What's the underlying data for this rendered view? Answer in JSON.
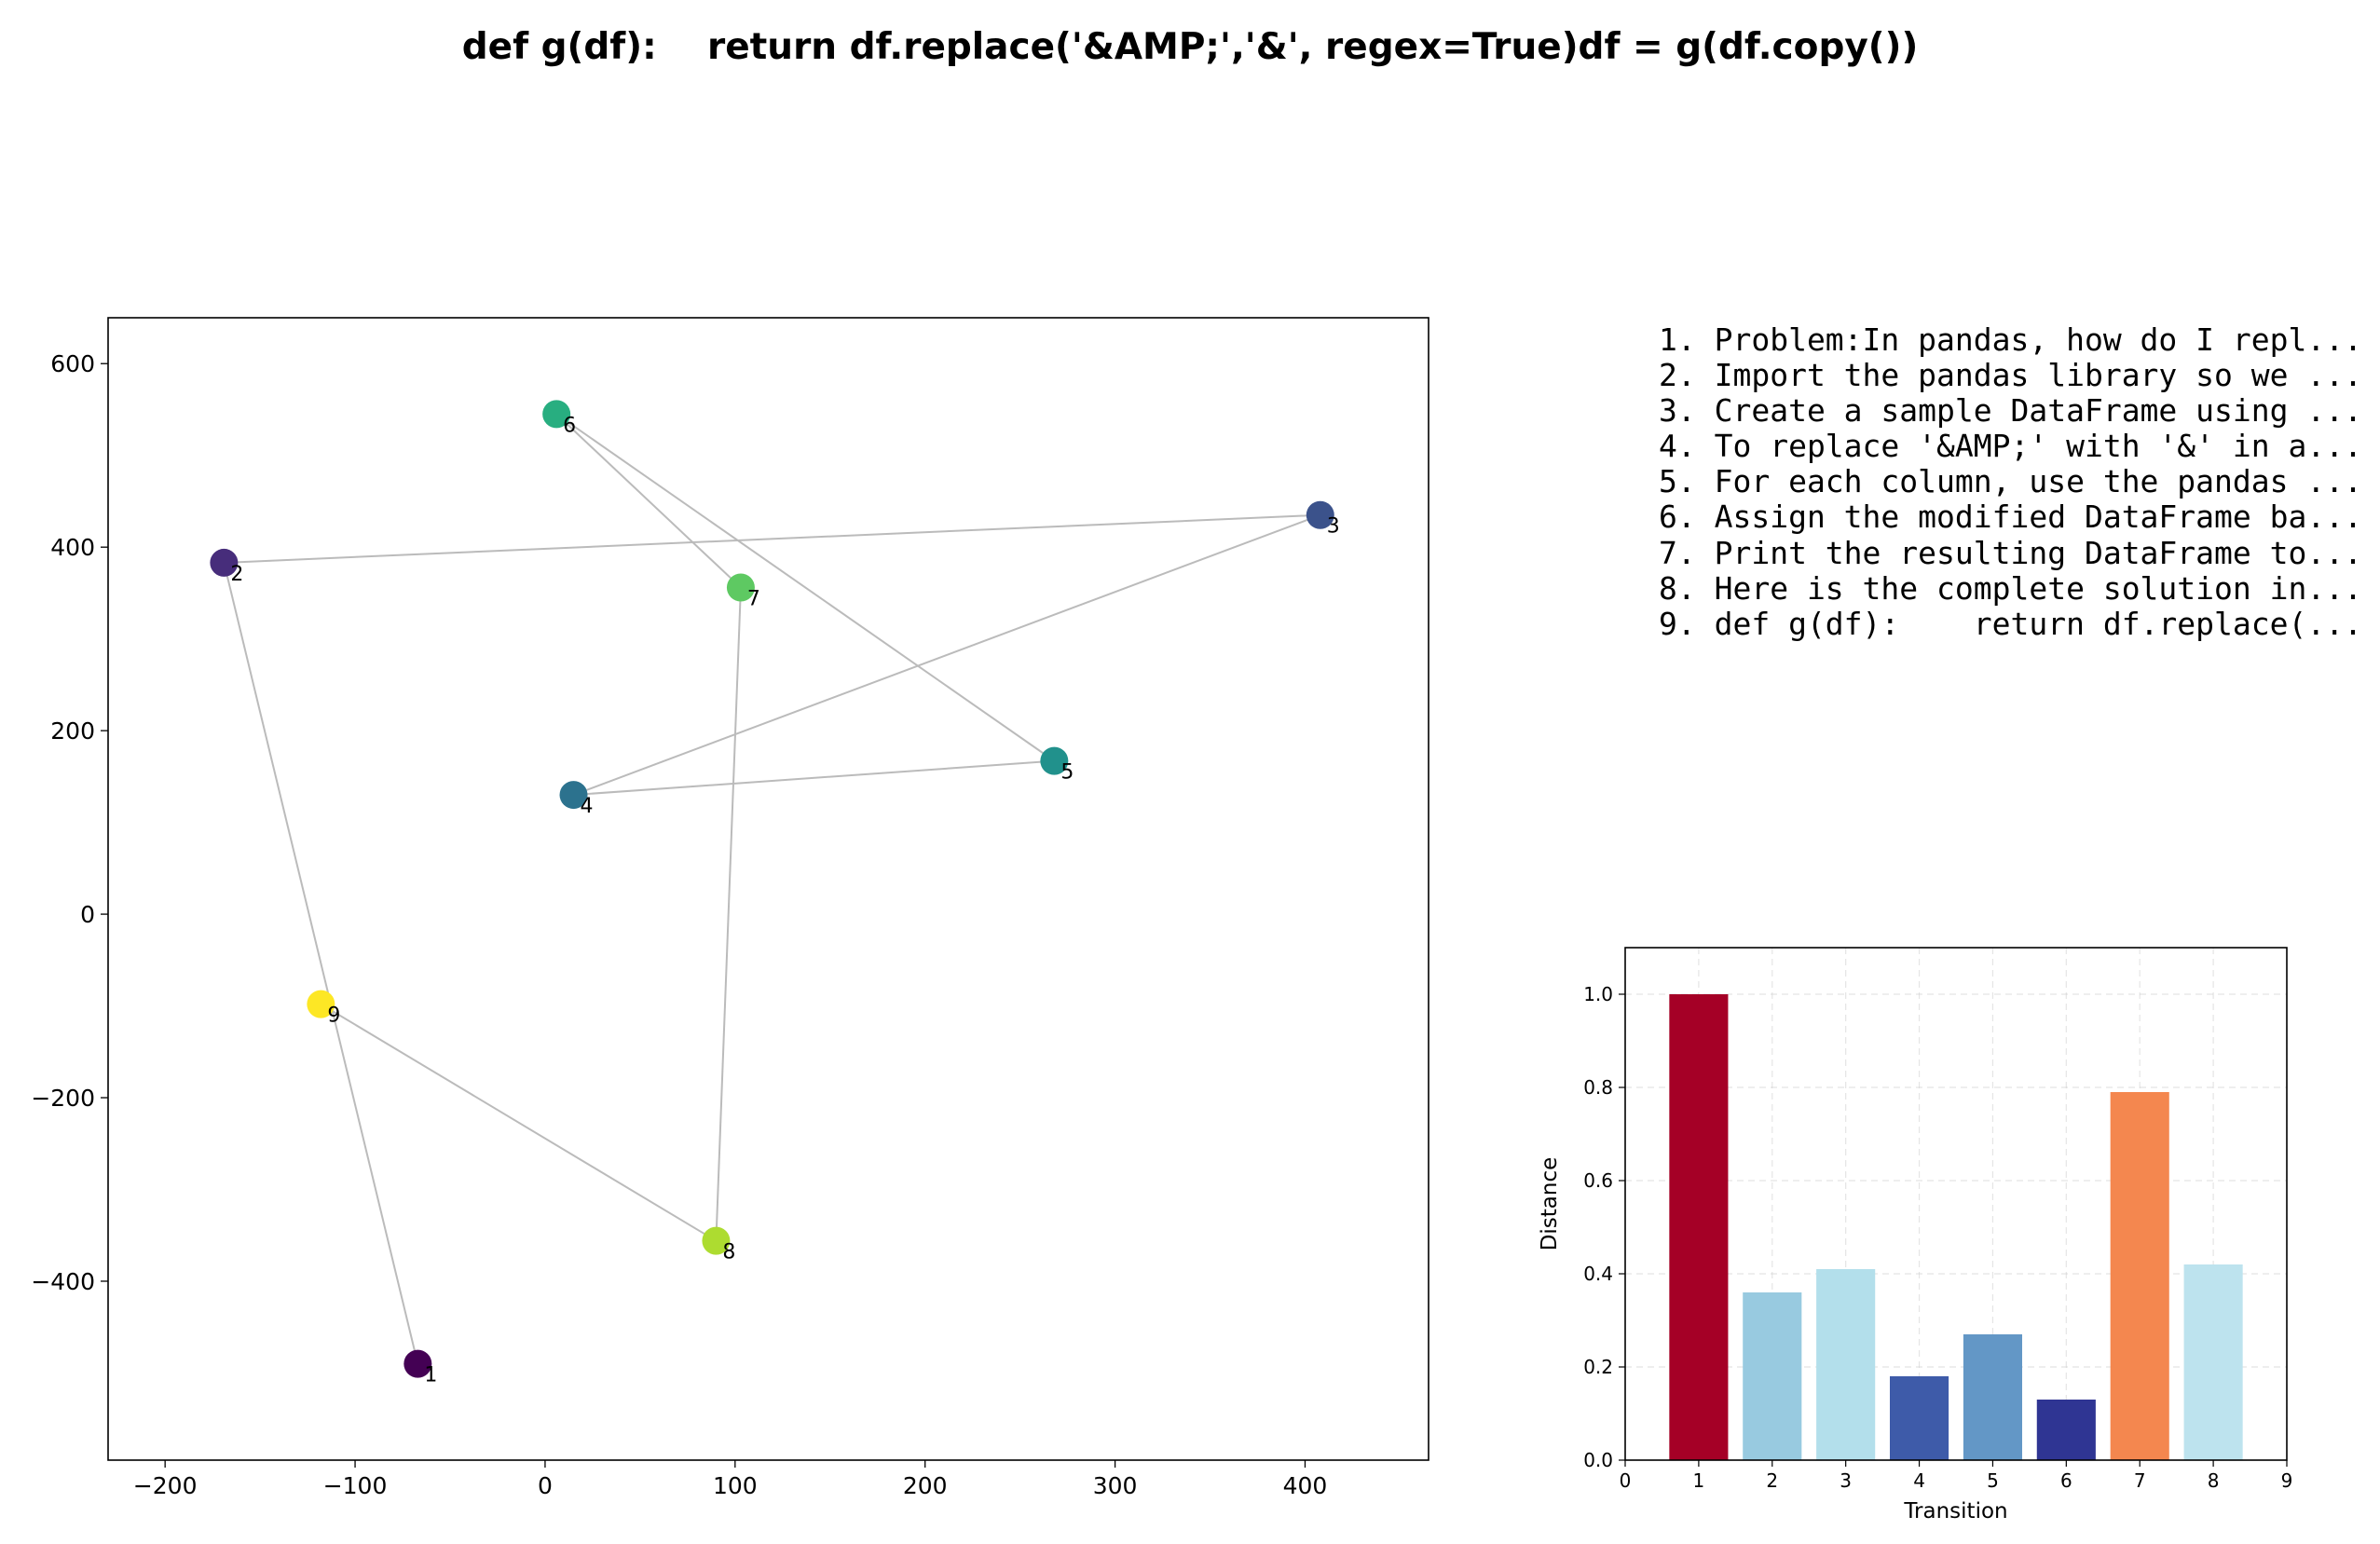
{
  "figure": {
    "title": "def g(df):    return df.replace('&AMP;','&', regex=True)df = g(df.copy())"
  },
  "steps": [
    "1. Problem:In pandas, how do I repl...",
    "2. Import the pandas library so we ...",
    "3. Create a sample DataFrame using ...",
    "4. To replace '&AMP;' with '&' in a...",
    "5. For each column, use the pandas ...",
    "6. Assign the modified DataFrame ba...",
    "7. Print the resulting DataFrame to...",
    "8. Here is the complete solution in...",
    "9. def g(df):    return df.replace(..."
  ],
  "chart_data": [
    {
      "type": "scatter",
      "title": "",
      "xlabel": "",
      "ylabel": "",
      "xlim": [
        -230,
        465
      ],
      "ylim": [
        -595,
        650
      ],
      "xticks": [
        -200,
        -100,
        0,
        100,
        200,
        300,
        400
      ],
      "yticks": [
        -400,
        -200,
        0,
        200,
        400,
        600
      ],
      "grid": false,
      "connect_in_order": true,
      "line_color": "#bbbbbb",
      "points": [
        {
          "label": "1",
          "x": -67,
          "y": -490,
          "color": "#440154"
        },
        {
          "label": "2",
          "x": -169,
          "y": 383,
          "color": "#472d7b"
        },
        {
          "label": "3",
          "x": 408,
          "y": 435,
          "color": "#3b528b"
        },
        {
          "label": "4",
          "x": 15,
          "y": 130,
          "color": "#2c728e"
        },
        {
          "label": "5",
          "x": 268,
          "y": 167,
          "color": "#21918c"
        },
        {
          "label": "6",
          "x": 6,
          "y": 545,
          "color": "#28ae80"
        },
        {
          "label": "7",
          "x": 103,
          "y": 356,
          "color": "#5ec962"
        },
        {
          "label": "8",
          "x": 90,
          "y": -356,
          "color": "#addc30"
        },
        {
          "label": "9",
          "x": -118,
          "y": -98,
          "color": "#fde725"
        }
      ]
    },
    {
      "type": "bar",
      "title": "",
      "xlabel": "Transition",
      "ylabel": "Distance",
      "xlim": [
        0,
        9
      ],
      "ylim": [
        0,
        1.1
      ],
      "xticks": [
        0,
        1,
        2,
        3,
        4,
        5,
        6,
        7,
        8,
        9
      ],
      "yticks": [
        0.0,
        0.2,
        0.4,
        0.6,
        0.8,
        1.0
      ],
      "grid": true,
      "categories": [
        "1",
        "2",
        "3",
        "4",
        "5",
        "6",
        "7",
        "8"
      ],
      "x": [
        1,
        2,
        3,
        4,
        5,
        6,
        7,
        8
      ],
      "values": [
        1.0,
        0.36,
        0.41,
        0.18,
        0.27,
        0.13,
        0.79,
        0.42
      ],
      "colors": [
        "#a50026",
        "#98cae0",
        "#b3dfeb",
        "#3e5ba9",
        "#6397c6",
        "#2f3593",
        "#f4874f",
        "#bde3ee"
      ]
    }
  ]
}
